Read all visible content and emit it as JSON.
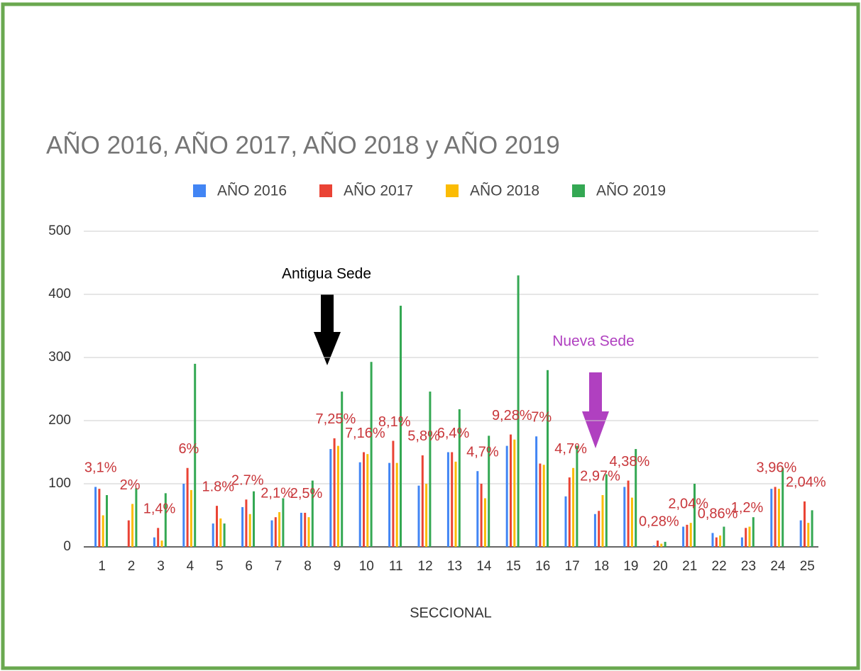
{
  "chart_data": {
    "type": "bar",
    "title": "AÑO 2016, AÑO 2017, AÑO 2018 y AÑO 2019",
    "x_label": "SECCIONAL",
    "categories": [
      "1",
      "2",
      "3",
      "4",
      "5",
      "6",
      "7",
      "8",
      "9",
      "10",
      "11",
      "12",
      "13",
      "14",
      "15",
      "16",
      "17",
      "18",
      "19",
      "20",
      "21",
      "22",
      "23",
      "24",
      "25"
    ],
    "series": [
      {
        "name": "AÑO 2016",
        "color": "#4285f4",
        "values": [
          95,
          0,
          15,
          100,
          37,
          63,
          42,
          54,
          155,
          134,
          133,
          97,
          150,
          120,
          160,
          175,
          80,
          52,
          95,
          2,
          32,
          22,
          15,
          92,
          42
        ]
      },
      {
        "name": "AÑO 2017",
        "color": "#ea4335",
        "values": [
          92,
          42,
          30,
          125,
          65,
          75,
          47,
          54,
          172,
          150,
          168,
          145,
          150,
          100,
          178,
          132,
          110,
          57,
          105,
          10,
          35,
          15,
          30,
          95,
          72
        ]
      },
      {
        "name": "AÑO 2018",
        "color": "#fbbc04",
        "values": [
          50,
          68,
          10,
          90,
          45,
          52,
          55,
          47,
          160,
          147,
          133,
          100,
          135,
          77,
          170,
          130,
          125,
          82,
          78,
          5,
          38,
          18,
          32,
          92,
          38
        ]
      },
      {
        "name": "AÑO 2019",
        "color": "#34a853",
        "values": [
          82,
          93,
          85,
          290,
          37,
          88,
          77,
          105,
          246,
          293,
          382,
          246,
          218,
          176,
          430,
          280,
          160,
          115,
          155,
          8,
          100,
          32,
          47,
          125,
          58
        ]
      }
    ],
    "category_annotations": [
      "3,1%",
      "2%",
      "1,4%",
      "6%",
      "1.8%",
      "2.7%",
      "2,1%",
      "2,5%",
      "7,25%",
      "7,16%",
      "8,1%",
      "5,8%",
      "6,4%",
      "4,7%",
      "9,28%",
      "7%",
      "4,7%",
      "2,97%",
      "4,38%",
      "0,28%",
      "2,04%",
      "0,86%",
      "1,2%",
      "3,96%",
      "2,04%"
    ],
    "annotations": [
      "Antigua Sede",
      "Nueva Sede"
    ],
    "ylim": [
      0,
      500
    ],
    "yticks": [
      0,
      100,
      200,
      300,
      400,
      500
    ],
    "grid": true,
    "legend": "top"
  }
}
